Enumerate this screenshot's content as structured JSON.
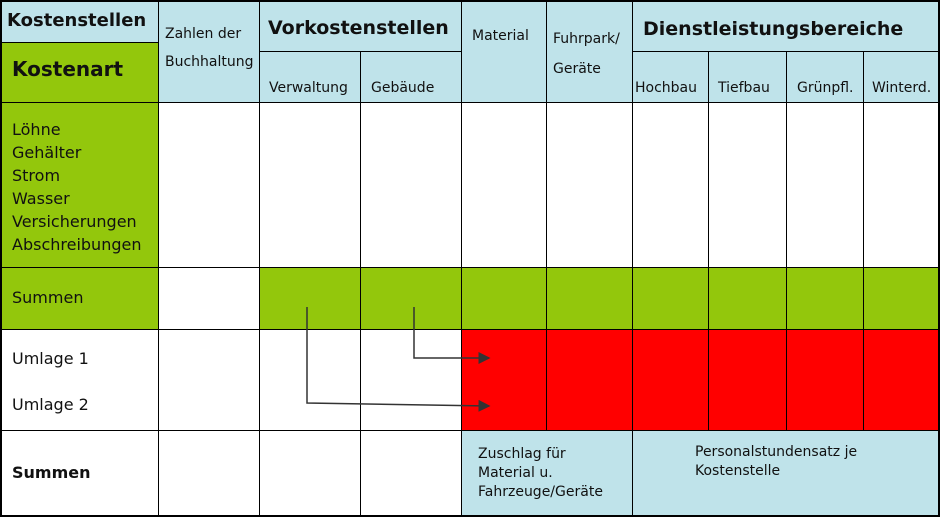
{
  "header": {
    "kostenstellen": "Kostenstellen",
    "kostenart": "Kostenart",
    "zahlen_line1": "Zahlen der",
    "zahlen_line2": "Buchhaltung",
    "vorkostenstellen": "Vorkostenstellen",
    "verwaltung": "Verwaltung",
    "gebaeude": "Gebäude",
    "material": "Material",
    "fuhrpark_line1": "Fuhrpark/",
    "fuhrpark_line2": "Geräte",
    "dienstleistungsbereiche": "Dienstleistungsbereiche",
    "hochbau": "Hochbau",
    "tiefbau": "Tiefbau",
    "gruenpfl": "Grünpfl.",
    "winterd": "Winterd."
  },
  "rows": {
    "kostenarten": [
      "Löhne",
      "Gehälter",
      "Strom",
      "Wasser",
      "Versicherungen",
      "Abschreibungen"
    ],
    "summen1": "Summen",
    "umlage1": "Umlage 1",
    "umlage2": "Umlage 2",
    "summen2": "Summen"
  },
  "footer": {
    "zuschlag_line1": "Zuschlag für",
    "zuschlag_line2": "Material u.",
    "zuschlag_line3": "Fahrzeuge/Geräte",
    "personal_line1": "Personalstundensatz je",
    "personal_line2": "Kostenstelle"
  },
  "colors": {
    "header_blue": "#bfe3ea",
    "cost_green": "#93c70c",
    "allocation_red": "#ff0000"
  }
}
